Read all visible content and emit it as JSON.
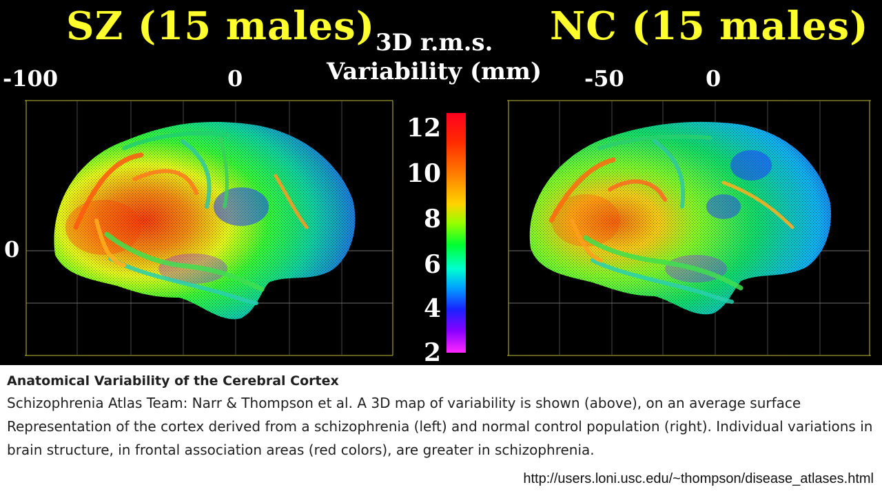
{
  "figure": {
    "sz_title": "SZ (15 males)",
    "nc_title": "NC (15 males)",
    "legend_line1": "3D r.m.s.",
    "legend_line2": "Variability (mm)",
    "left_axis": {
      "tick_minus100": "-100",
      "tick_zero_top": "0",
      "tick_zero_side": "0"
    },
    "right_axis": {
      "tick_minus50": "-50",
      "tick_zero_top": "0"
    },
    "colorbar_ticks": [
      "12",
      "10",
      "8",
      "6",
      "4",
      "2"
    ],
    "colors": {
      "title_yellow": "#ffff2e",
      "grid_yellow": "#d8d23a",
      "background": "#000000"
    }
  },
  "caption": {
    "title": "Anatomical Variability of the Cerebral Cortex",
    "body": "Schizophrenia Atlas Team: Narr & Thompson et al. A 3D map of variability is shown (above), on an average surface Representation of the cortex derived from a schizophrenia (left) and normal control population (right). Individual variations in brain structure, in frontal association areas (red colors), are greater in schizophrenia.",
    "url": "http://users.loni.usc.edu/~thompson/disease_atlases.html"
  }
}
